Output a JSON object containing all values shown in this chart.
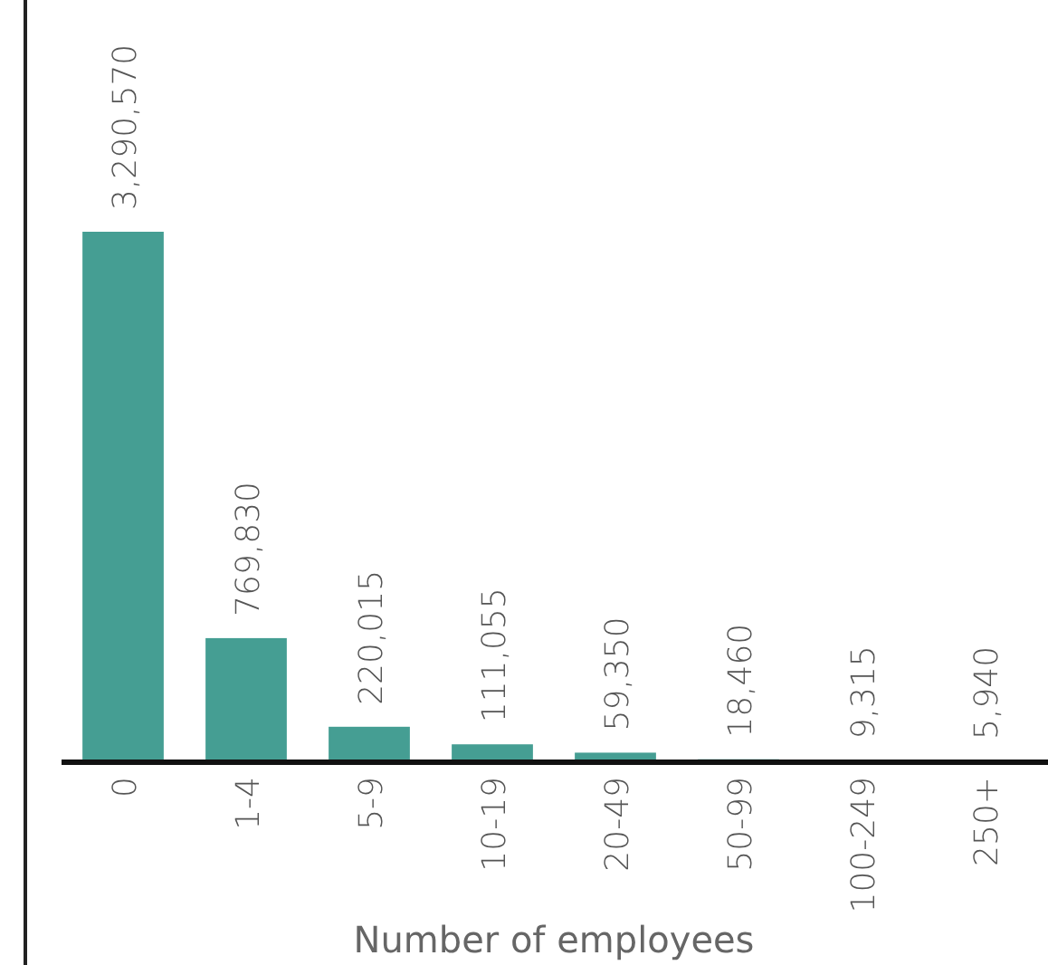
{
  "chart_data": {
    "type": "bar",
    "xlabel": "Number of employees",
    "categories": [
      "0",
      "1-4",
      "5-9",
      "10-19",
      "20-49",
      "50-99",
      "100-249",
      "250+"
    ],
    "values": [
      3290570,
      769830,
      220015,
      111055,
      59350,
      18460,
      9315,
      5940
    ],
    "value_labels": [
      "3,290,570",
      "769,830",
      "220,015",
      "111,055",
      "59,350",
      "18,460",
      "9,315",
      "5,940"
    ],
    "color": "#459e93"
  }
}
